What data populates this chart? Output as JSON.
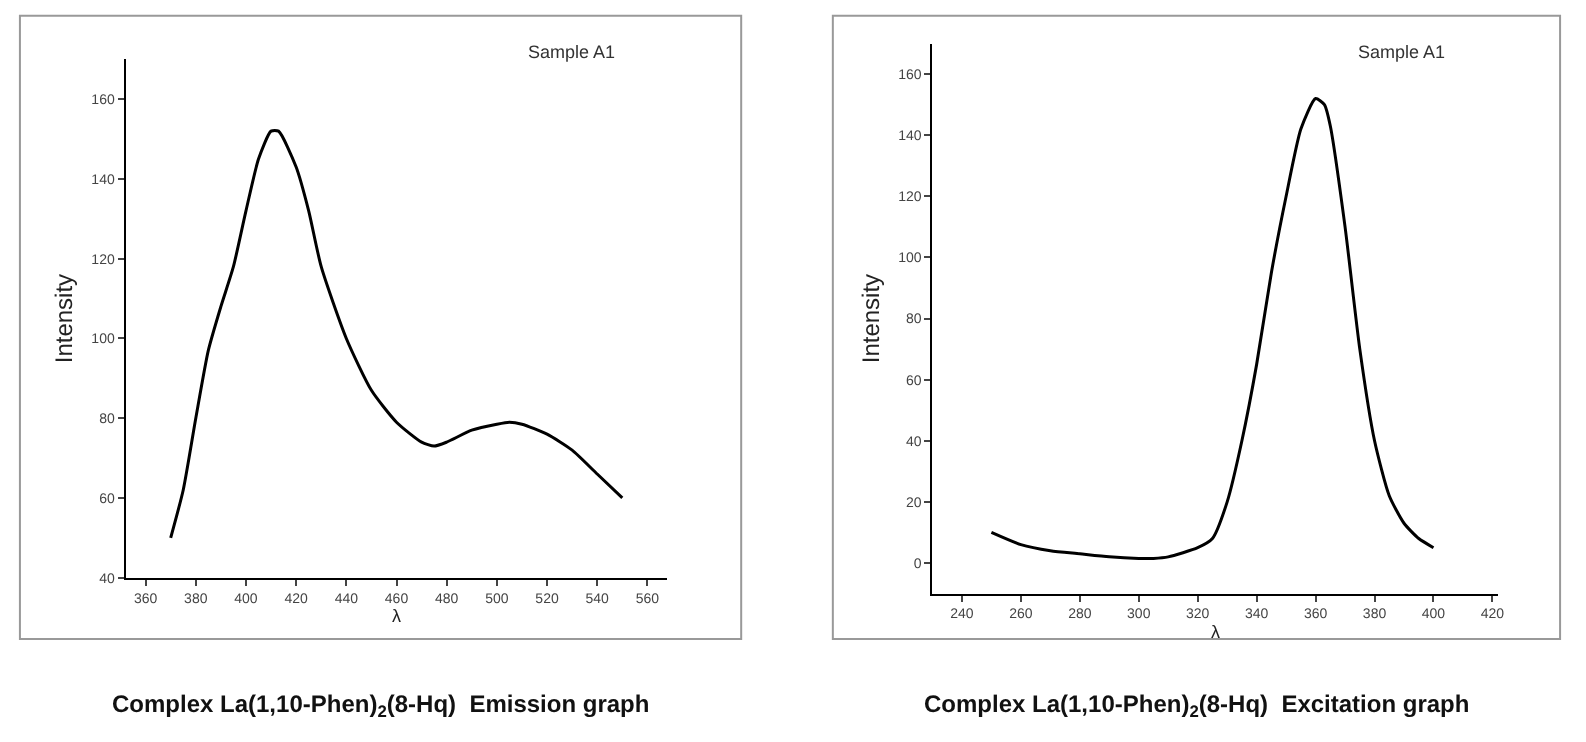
{
  "chart_data": [
    {
      "type": "line",
      "title": "Complex La(1,10-Phen)$_{2}$(8-Hq)  Emission graph",
      "xlabel": "λ",
      "ylabel": "Intensity",
      "annotations": [
        "Sample A1"
      ],
      "x": [
        370,
        375,
        380,
        385,
        390,
        395,
        400,
        405,
        410,
        413,
        420,
        425,
        430,
        440,
        450,
        460,
        470,
        475,
        480,
        490,
        500,
        505,
        510,
        520,
        530,
        540,
        550
      ],
      "series": [
        {
          "color": "#000000",
          "values": [
            50,
            62,
            80,
            97,
            108,
            118,
            132,
            145,
            152,
            152,
            143,
            132,
            118,
            100,
            87,
            79,
            74,
            73,
            74,
            77,
            78.5,
            79,
            78.5,
            76,
            72,
            66,
            60
          ]
        }
      ],
      "xlim": [
        352,
        568
      ],
      "ylim": [
        40,
        170
      ],
      "xticks": [
        360,
        380,
        400,
        420,
        440,
        460,
        480,
        500,
        520,
        540,
        560
      ],
      "yticks": [
        40,
        60,
        80,
        100,
        120,
        140,
        160
      ]
    },
    {
      "type": "line",
      "title": "Complex La(1,10-Phen)$_{2}$(8-Hq)  Excitation graph",
      "xlabel": "λ",
      "ylabel": "Intensity",
      "annotations": [
        "Sample A1"
      ],
      "x": [
        250,
        260,
        270,
        280,
        290,
        300,
        305,
        310,
        320,
        325,
        330,
        335,
        340,
        345,
        350,
        355,
        360,
        363,
        365,
        370,
        375,
        380,
        385,
        390,
        395,
        400
      ],
      "series": [
        {
          "color": "#000000",
          "values": [
            10,
            6,
            4,
            3,
            2,
            1.5,
            1.5,
            2,
            5,
            8,
            20,
            40,
            65,
            95,
            120,
            142,
            152,
            150,
            143,
            110,
            70,
            40,
            22,
            13,
            8,
            5
          ]
        }
      ],
      "xlim": [
        230,
        422
      ],
      "ylim": [
        -10,
        170
      ],
      "xticks": [
        240,
        260,
        280,
        300,
        320,
        340,
        360,
        380,
        400,
        420
      ],
      "yticks": [
        0,
        20,
        40,
        60,
        80,
        100,
        120,
        140,
        160
      ]
    }
  ]
}
